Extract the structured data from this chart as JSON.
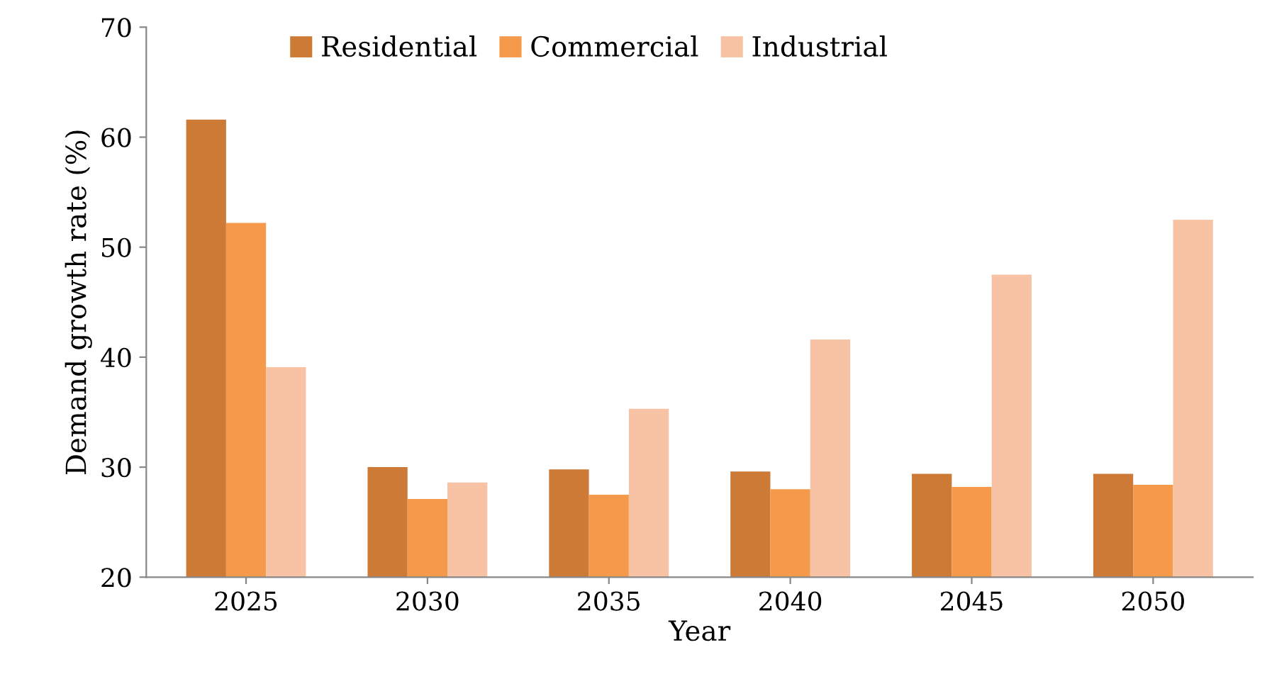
{
  "chart_data": {
    "type": "bar",
    "xlabel": "Year",
    "ylabel": "Demand growth rate (%)",
    "categories": [
      "2025",
      "2030",
      "2035",
      "2040",
      "2045",
      "2050"
    ],
    "series": [
      {
        "name": "Residential",
        "color": "#cd7a37",
        "values": [
          61.6,
          30.0,
          29.8,
          29.6,
          29.4,
          29.4
        ]
      },
      {
        "name": "Commercial",
        "color": "#f49a4a",
        "values": [
          52.2,
          27.1,
          27.5,
          28.0,
          28.2,
          28.4
        ]
      },
      {
        "name": "Industrial",
        "color": "#f8c2a5",
        "values": [
          39.1,
          28.6,
          35.3,
          41.6,
          47.5,
          52.5
        ]
      }
    ],
    "ylim": [
      20,
      70
    ],
    "yticks": [
      20,
      30,
      40,
      50,
      60,
      70
    ],
    "grid": false,
    "legend": "top"
  }
}
